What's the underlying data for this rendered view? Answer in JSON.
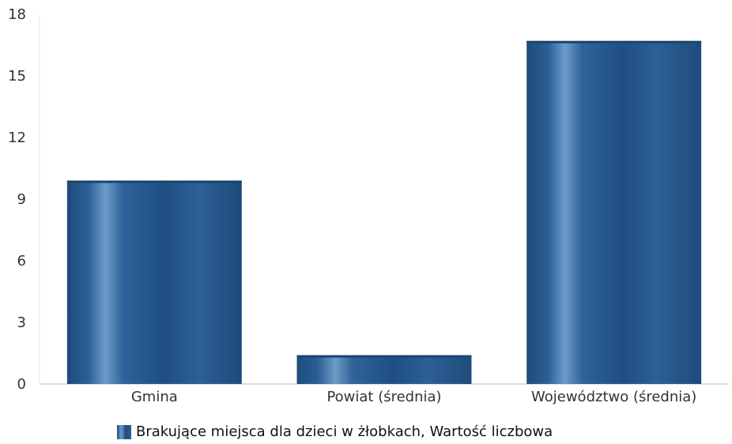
{
  "chart_data": {
    "type": "bar",
    "categories": [
      "Gmina",
      "Powiat (średnia)",
      "Województwo (średnia)"
    ],
    "series": [
      {
        "name": "Brakujące miejsca dla dzieci w żłobkach, Wartość liczbowa",
        "values": [
          9.9,
          1.4,
          16.7
        ],
        "color": "#25588a"
      }
    ],
    "yticks": [
      0,
      3,
      6,
      9,
      12,
      15,
      18
    ],
    "ylim": [
      0,
      18
    ],
    "grid": false,
    "legend_position": "bottom"
  }
}
